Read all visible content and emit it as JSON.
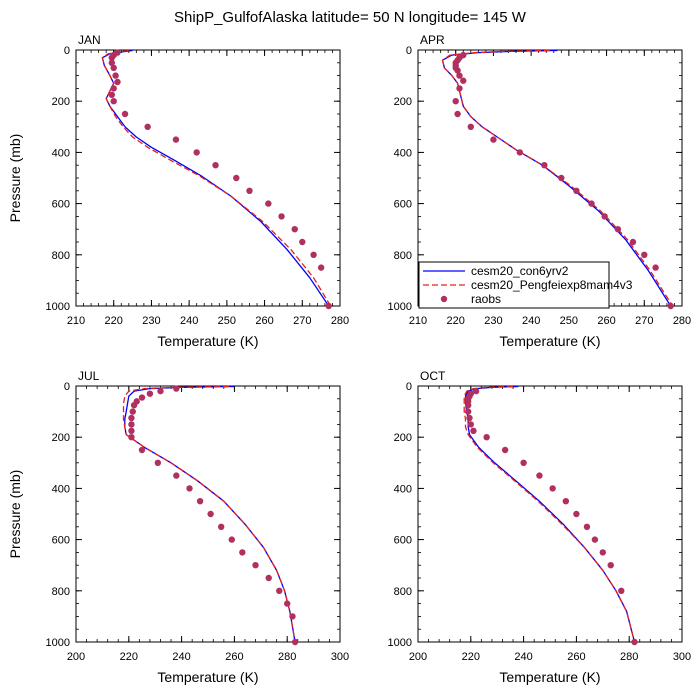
{
  "figure": {
    "title": "ShipP_GulfofAlaska  latitude= 50 N longitude= 145 W"
  },
  "colors": {
    "model1": "#0000ff",
    "model2": "#e8201a",
    "obs": "#b03060"
  },
  "legend": {
    "panel": 1,
    "placement": "lower-left",
    "items": [
      {
        "label": "cesm20_con6yrv2",
        "style": "solid-line",
        "color": "#0000ff"
      },
      {
        "label": "cesm20_Pengfeiexp8mam4v3",
        "style": "dashed-line",
        "color": "#e8201a"
      },
      {
        "label": "raobs",
        "style": "dot",
        "color": "#b03060"
      }
    ]
  },
  "chart_data": [
    {
      "type": "line",
      "title": "JAN",
      "xlabel": "Temperature (K)",
      "ylabel": "Pressure (mb)",
      "xlim": [
        210,
        280
      ],
      "ylim": [
        1000,
        0
      ],
      "y_reversed": true,
      "xticks": [
        210,
        220,
        230,
        240,
        250,
        260,
        270,
        280
      ],
      "yticks": [
        0,
        200,
        400,
        600,
        800,
        1000
      ],
      "series": [
        {
          "name": "cesm20_con6yrv2",
          "style": "solid",
          "color": "#0000ff",
          "x": [
            225,
            222,
            219,
            217,
            217.5,
            219,
            220,
            219,
            218,
            219,
            221,
            223,
            226,
            230,
            236,
            243,
            251,
            259,
            266,
            272,
            277
          ],
          "y": [
            2,
            8,
            15,
            30,
            60,
            100,
            130,
            160,
            190,
            220,
            260,
            300,
            340,
            380,
            430,
            490,
            570,
            670,
            780,
            890,
            1000
          ]
        },
        {
          "name": "cesm20_Pengfeiexp8mam4v3",
          "style": "dashed",
          "color": "#e8201a",
          "x": [
            224,
            221,
            218.5,
            217,
            217.5,
            219,
            220,
            219,
            218,
            219,
            220.5,
            222.5,
            225,
            229,
            235,
            242.5,
            251,
            259.5,
            267,
            273,
            277.5
          ],
          "y": [
            2,
            8,
            15,
            30,
            60,
            100,
            130,
            160,
            190,
            220,
            260,
            300,
            340,
            380,
            430,
            490,
            570,
            670,
            780,
            890,
            1000
          ]
        },
        {
          "name": "raobs",
          "style": "dots",
          "color": "#b03060",
          "x": [
            221,
            220,
            219.5,
            219.5,
            220,
            220.5,
            221,
            220,
            219.5,
            220,
            223,
            229,
            236.5,
            242,
            247,
            252.5,
            256,
            261,
            264.5,
            268,
            270,
            273,
            275,
            277
          ],
          "y": [
            10,
            20,
            30,
            50,
            70,
            100,
            125,
            150,
            175,
            200,
            250,
            300,
            350,
            400,
            450,
            500,
            550,
            600,
            650,
            700,
            750,
            800,
            850,
            1000
          ]
        }
      ]
    },
    {
      "type": "line",
      "title": "APR",
      "xlabel": "Temperature (K)",
      "ylabel": "",
      "xlim": [
        210,
        280
      ],
      "ylim": [
        1000,
        0
      ],
      "y_reversed": true,
      "xticks": [
        210,
        220,
        230,
        240,
        250,
        260,
        270,
        280
      ],
      "yticks": [
        0,
        200,
        400,
        600,
        800,
        1000
      ],
      "series": [
        {
          "name": "cesm20_con6yrv2",
          "style": "solid",
          "color": "#0000ff",
          "x": [
            247,
            235,
            226,
            219,
            216.5,
            217,
            219,
            220.5,
            221,
            221.5,
            222,
            224,
            227,
            231,
            236,
            243,
            250,
            258,
            265,
            271,
            277
          ],
          "y": [
            2,
            5,
            10,
            20,
            40,
            70,
            100,
            130,
            160,
            190,
            220,
            260,
            300,
            340,
            390,
            450,
            530,
            630,
            740,
            860,
            1000
          ]
        },
        {
          "name": "cesm20_Pengfeiexp8mam4v3",
          "style": "dashed",
          "color": "#e8201a",
          "x": [
            245,
            233,
            225,
            218.5,
            216.5,
            217,
            219,
            220.5,
            221,
            221.5,
            222,
            224,
            227,
            231,
            236,
            243,
            250.5,
            258.5,
            265.5,
            271.5,
            277.5
          ],
          "y": [
            2,
            5,
            10,
            20,
            40,
            70,
            100,
            130,
            160,
            190,
            220,
            260,
            300,
            340,
            390,
            450,
            530,
            630,
            740,
            860,
            1000
          ]
        },
        {
          "name": "raobs",
          "style": "dots",
          "color": "#b03060",
          "x": [
            222,
            221,
            220.5,
            220,
            220,
            220,
            220.5,
            221,
            222,
            221,
            220,
            220.5,
            224,
            230,
            237,
            243.5,
            248,
            252,
            256,
            259.5,
            263,
            267,
            270,
            273,
            277
          ],
          "y": [
            20,
            30,
            40,
            50,
            60,
            70,
            80,
            100,
            120,
            150,
            200,
            250,
            300,
            350,
            400,
            450,
            500,
            550,
            600,
            650,
            700,
            750,
            800,
            850,
            1000
          ]
        }
      ]
    },
    {
      "type": "line",
      "title": "JUL",
      "xlabel": "Temperature (K)",
      "ylabel": "Pressure (mb)",
      "xlim": [
        200,
        300
      ],
      "ylim": [
        1000,
        0
      ],
      "y_reversed": true,
      "xticks": [
        200,
        220,
        240,
        260,
        280,
        300
      ],
      "yticks": [
        0,
        200,
        400,
        600,
        800,
        1000
      ],
      "series": [
        {
          "name": "cesm20_con6yrv2",
          "style": "solid",
          "color": "#0000ff",
          "x": [
            260,
            240,
            228,
            222,
            220,
            219.5,
            219,
            218.5,
            218.5,
            219,
            226,
            236,
            246,
            256,
            264,
            271,
            276,
            279,
            281,
            283
          ],
          "y": [
            2,
            5,
            10,
            20,
            40,
            70,
            100,
            130,
            160,
            190,
            240,
            300,
            370,
            450,
            540,
            630,
            720,
            800,
            880,
            1000
          ]
        },
        {
          "name": "cesm20_Pengfeiexp8mam4v3",
          "style": "dashed",
          "color": "#e8201a",
          "x": [
            258,
            238,
            226,
            220,
            218.5,
            218,
            218,
            218,
            218.5,
            219,
            226,
            236,
            246,
            256,
            264,
            271,
            276,
            279,
            281,
            283
          ],
          "y": [
            2,
            5,
            10,
            20,
            40,
            70,
            100,
            130,
            160,
            190,
            240,
            300,
            370,
            450,
            540,
            630,
            720,
            800,
            880,
            1000
          ]
        },
        {
          "name": "raobs",
          "style": "dots",
          "color": "#b03060",
          "x": [
            238,
            232,
            228,
            225,
            223,
            222,
            221.5,
            221,
            221,
            221,
            221,
            225,
            231,
            238,
            243,
            247,
            251,
            255,
            259,
            263,
            268,
            273,
            277,
            280,
            282,
            283
          ],
          "y": [
            10,
            20,
            30,
            45,
            60,
            75,
            100,
            125,
            150,
            175,
            200,
            250,
            300,
            350,
            400,
            450,
            500,
            550,
            600,
            650,
            700,
            750,
            800,
            850,
            900,
            1000
          ]
        }
      ]
    },
    {
      "type": "line",
      "title": "OCT",
      "xlabel": "Temperature (K)",
      "ylabel": "",
      "xlim": [
        200,
        300
      ],
      "ylim": [
        1000,
        0
      ],
      "y_reversed": true,
      "xticks": [
        200,
        220,
        240,
        260,
        280,
        300
      ],
      "yticks": [
        0,
        200,
        400,
        600,
        800,
        1000
      ],
      "series": [
        {
          "name": "cesm20_con6yrv2",
          "style": "solid",
          "color": "#0000ff",
          "x": [
            238,
            228,
            222,
            219,
            218,
            218,
            218.5,
            219,
            219,
            219.5,
            223,
            229,
            237,
            246,
            255,
            263,
            270,
            275,
            279,
            282
          ],
          "y": [
            2,
            5,
            10,
            20,
            40,
            70,
            100,
            130,
            160,
            190,
            240,
            300,
            370,
            450,
            540,
            630,
            720,
            800,
            880,
            1000
          ]
        },
        {
          "name": "cesm20_Pengfeiexp8mam4v3",
          "style": "dashed",
          "color": "#e8201a",
          "x": [
            236,
            226,
            221,
            218.5,
            217.5,
            217.5,
            217.5,
            218,
            218,
            219,
            222.5,
            228.5,
            236.5,
            245.5,
            254.5,
            263,
            270,
            275,
            279,
            282
          ],
          "y": [
            2,
            5,
            10,
            20,
            40,
            70,
            100,
            130,
            160,
            190,
            240,
            300,
            370,
            450,
            540,
            630,
            720,
            800,
            880,
            1000
          ]
        },
        {
          "name": "raobs",
          "style": "dots",
          "color": "#b03060",
          "x": [
            222,
            220,
            219.5,
            219,
            219,
            219,
            219,
            219.5,
            220,
            221,
            226,
            233,
            240,
            246,
            251,
            256,
            260,
            264,
            267,
            270,
            273,
            277,
            282
          ],
          "y": [
            20,
            30,
            40,
            50,
            60,
            75,
            100,
            125,
            150,
            175,
            200,
            250,
            300,
            350,
            400,
            450,
            500,
            550,
            600,
            650,
            700,
            800,
            1000
          ]
        }
      ]
    }
  ]
}
